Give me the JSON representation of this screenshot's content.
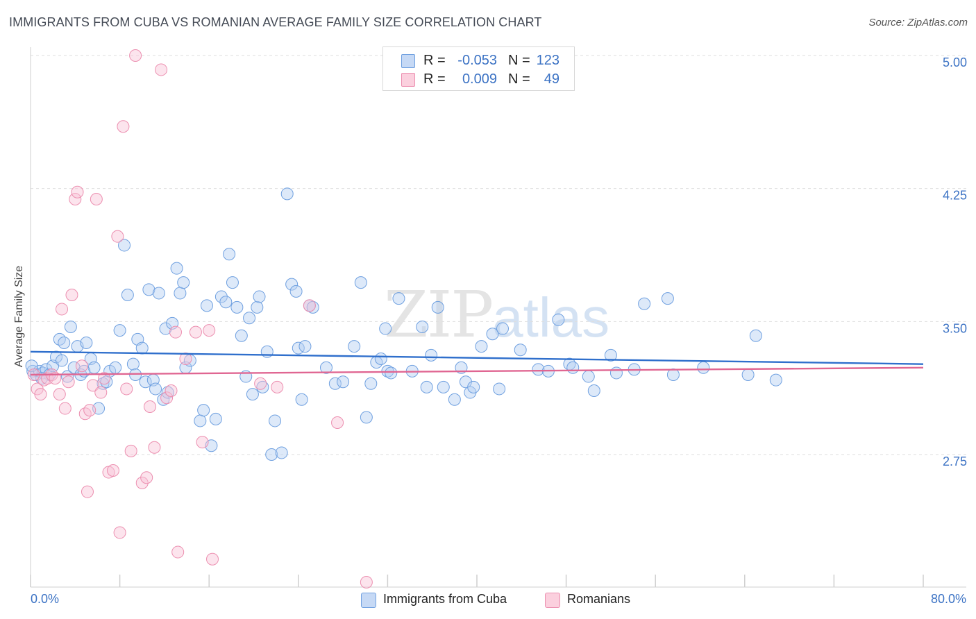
{
  "header": {
    "title": "IMMIGRANTS FROM CUBA VS ROMANIAN AVERAGE FAMILY SIZE CORRELATION CHART",
    "source": "Source: ZipAtlas.com"
  },
  "watermark": {
    "zip": "ZIP",
    "atlas": "atlas"
  },
  "stats": [
    {
      "r_label": "R =",
      "r_value": "-0.053",
      "n_label": "N =",
      "n_value": "123",
      "color": "#6fa0e0"
    },
    {
      "r_label": "R =",
      "r_value": "0.009",
      "n_label": "N =",
      "n_value": "49",
      "color": "#ec8fb0"
    }
  ],
  "legend": [
    {
      "label": "Immigrants from Cuba",
      "color": "#6fa0e0"
    },
    {
      "label": "Romanians",
      "color": "#ec8fb0"
    }
  ],
  "chart_data": {
    "type": "scatter",
    "ylabel": "Average Family Size",
    "xlim": [
      0,
      80
    ],
    "ylim": [
      2.3,
      5.1
    ],
    "x_tick_labels": [
      "0.0%",
      "80.0%"
    ],
    "y_ticks": [
      2.75,
      3.5,
      4.25,
      5.0
    ],
    "y_tick_labels": [
      "2.75",
      "3.50",
      "4.25",
      "5.00"
    ],
    "grid": true,
    "legend_position": "bottom",
    "series": [
      {
        "name": "Immigrants from Cuba",
        "color": "#6fa0e0",
        "trend": [
          [
            0,
            3.33
          ],
          [
            80,
            3.26
          ]
        ],
        "points": [
          [
            0.2,
            3.22
          ],
          [
            0.5,
            3.2
          ],
          [
            0.8,
            3.22
          ],
          [
            1.1,
            3.21
          ],
          [
            1.4,
            3.23
          ],
          [
            1.7,
            3.2
          ],
          [
            2.0,
            3.25
          ],
          [
            2.3,
            3.3
          ],
          [
            2.6,
            3.4
          ],
          [
            3.0,
            3.38
          ],
          [
            3.3,
            3.19
          ],
          [
            3.6,
            3.47
          ],
          [
            3.9,
            3.24
          ],
          [
            4.2,
            3.36
          ],
          [
            4.5,
            3.2
          ],
          [
            5.0,
            3.38
          ],
          [
            5.4,
            3.29
          ],
          [
            5.7,
            3.24
          ],
          [
            6.1,
            3.01
          ],
          [
            6.5,
            3.15
          ],
          [
            6.8,
            3.16
          ],
          [
            7.1,
            3.22
          ],
          [
            7.6,
            3.24
          ],
          [
            8.0,
            3.45
          ],
          [
            8.4,
            3.93
          ],
          [
            8.7,
            3.65
          ],
          [
            9.2,
            3.26
          ],
          [
            9.6,
            3.4
          ],
          [
            10.0,
            3.35
          ],
          [
            10.3,
            3.16
          ],
          [
            10.6,
            3.68
          ],
          [
            11.0,
            3.17
          ],
          [
            11.2,
            3.12
          ],
          [
            11.5,
            3.66
          ],
          [
            11.9,
            3.06
          ],
          [
            12.1,
            3.46
          ],
          [
            12.3,
            3.1
          ],
          [
            12.7,
            3.49
          ],
          [
            13.1,
            3.8
          ],
          [
            13.4,
            3.66
          ],
          [
            13.7,
            3.72
          ],
          [
            13.9,
            3.24
          ],
          [
            14.3,
            3.28
          ],
          [
            15.2,
            2.94
          ],
          [
            15.5,
            3.0
          ],
          [
            15.8,
            3.59
          ],
          [
            16.2,
            2.8
          ],
          [
            16.6,
            2.95
          ],
          [
            17.1,
            3.64
          ],
          [
            17.5,
            3.61
          ],
          [
            17.8,
            3.88
          ],
          [
            18.1,
            3.72
          ],
          [
            18.5,
            3.58
          ],
          [
            18.9,
            3.42
          ],
          [
            19.3,
            3.19
          ],
          [
            19.6,
            3.52
          ],
          [
            19.9,
            3.09
          ],
          [
            20.3,
            3.58
          ],
          [
            20.5,
            3.64
          ],
          [
            20.8,
            3.13
          ],
          [
            21.2,
            3.33
          ],
          [
            21.6,
            2.75
          ],
          [
            21.9,
            2.94
          ],
          [
            22.5,
            2.76
          ],
          [
            23.0,
            4.22
          ],
          [
            23.4,
            3.71
          ],
          [
            23.8,
            3.67
          ],
          [
            24.0,
            3.35
          ],
          [
            24.6,
            3.36
          ],
          [
            24.3,
            3.06
          ],
          [
            25.0,
            3.59
          ],
          [
            25.3,
            3.58
          ],
          [
            26.5,
            3.24
          ],
          [
            27.3,
            3.15
          ],
          [
            28.0,
            3.16
          ],
          [
            29.0,
            3.36
          ],
          [
            29.6,
            3.72
          ],
          [
            30.1,
            2.96
          ],
          [
            30.5,
            3.15
          ],
          [
            31.0,
            3.27
          ],
          [
            31.4,
            3.29
          ],
          [
            31.8,
            3.46
          ],
          [
            32.0,
            3.22
          ],
          [
            32.3,
            3.21
          ],
          [
            33.0,
            3.63
          ],
          [
            34.2,
            3.22
          ],
          [
            35.1,
            3.47
          ],
          [
            35.5,
            3.13
          ],
          [
            35.9,
            3.31
          ],
          [
            36.5,
            3.58
          ],
          [
            37.0,
            3.13
          ],
          [
            38.0,
            3.06
          ],
          [
            38.6,
            3.24
          ],
          [
            39.0,
            3.16
          ],
          [
            39.4,
            3.1
          ],
          [
            39.7,
            3.13
          ],
          [
            40.4,
            3.36
          ],
          [
            41.4,
            3.43
          ],
          [
            42.0,
            3.12
          ],
          [
            42.3,
            3.46
          ],
          [
            43.9,
            3.34
          ],
          [
            45.5,
            3.23
          ],
          [
            46.4,
            3.22
          ],
          [
            47.3,
            3.51
          ],
          [
            48.3,
            3.26
          ],
          [
            48.6,
            3.24
          ],
          [
            50.0,
            3.19
          ],
          [
            50.5,
            3.11
          ],
          [
            52.0,
            3.31
          ],
          [
            52.5,
            3.21
          ],
          [
            54.1,
            3.23
          ],
          [
            55.0,
            3.6
          ],
          [
            57.1,
            3.63
          ],
          [
            57.6,
            3.2
          ],
          [
            60.3,
            3.24
          ],
          [
            64.3,
            3.2
          ],
          [
            65.0,
            3.42
          ],
          [
            66.8,
            3.17
          ],
          [
            0.1,
            3.25
          ],
          [
            1.0,
            3.18
          ],
          [
            2.8,
            3.28
          ],
          [
            4.8,
            3.22
          ],
          [
            9.4,
            3.2
          ]
        ]
      },
      {
        "name": "Romanians",
        "color": "#ec8fb0",
        "trend": [
          [
            0,
            3.2
          ],
          [
            80,
            3.24
          ]
        ],
        "points": [
          [
            0.3,
            3.2
          ],
          [
            0.6,
            3.12
          ],
          [
            0.9,
            3.09
          ],
          [
            1.2,
            3.17
          ],
          [
            1.5,
            3.18
          ],
          [
            1.9,
            3.2
          ],
          [
            2.2,
            3.18
          ],
          [
            2.6,
            3.09
          ],
          [
            2.8,
            3.57
          ],
          [
            3.1,
            3.01
          ],
          [
            3.4,
            3.16
          ],
          [
            3.7,
            3.65
          ],
          [
            4.0,
            4.19
          ],
          [
            4.2,
            4.23
          ],
          [
            4.6,
            3.25
          ],
          [
            4.9,
            2.98
          ],
          [
            5.1,
            2.54
          ],
          [
            5.3,
            3.0
          ],
          [
            5.6,
            3.14
          ],
          [
            5.9,
            4.19
          ],
          [
            6.3,
            3.1
          ],
          [
            6.6,
            3.18
          ],
          [
            7.0,
            2.65
          ],
          [
            7.4,
            2.66
          ],
          [
            7.8,
            3.98
          ],
          [
            8.0,
            2.31
          ],
          [
            8.3,
            4.6
          ],
          [
            8.6,
            3.12
          ],
          [
            9.0,
            2.77
          ],
          [
            9.4,
            5.0
          ],
          [
            10.0,
            2.59
          ],
          [
            10.4,
            2.62
          ],
          [
            10.7,
            3.02
          ],
          [
            11.1,
            2.79
          ],
          [
            11.7,
            4.92
          ],
          [
            12.2,
            3.07
          ],
          [
            12.6,
            3.11
          ],
          [
            13.0,
            3.44
          ],
          [
            13.2,
            2.2
          ],
          [
            13.9,
            3.29
          ],
          [
            14.8,
            3.44
          ],
          [
            15.4,
            2.82
          ],
          [
            16.0,
            3.45
          ],
          [
            16.3,
            2.16
          ],
          [
            20.6,
            3.15
          ],
          [
            22.1,
            3.13
          ],
          [
            25.0,
            3.59
          ],
          [
            27.5,
            2.93
          ],
          [
            30.1,
            2.03
          ]
        ]
      }
    ]
  }
}
